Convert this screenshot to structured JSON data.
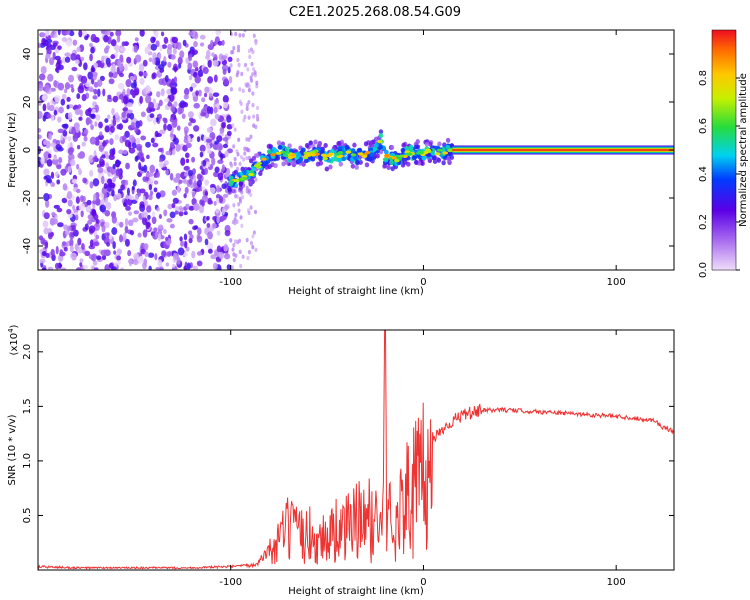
{
  "title": "C2E1.2025.268.08.54.G09",
  "chart_data": [
    {
      "type": "heatmap",
      "panel": "spectrogram",
      "xlabel": "Height of straight line (km)",
      "ylabel": "Frequency (Hz)",
      "xlim": [
        -200,
        130
      ],
      "ylim": [
        -50,
        50
      ],
      "xticks": [
        -100,
        0,
        100
      ],
      "yticks": [
        -40,
        -20,
        0,
        20,
        40
      ],
      "ridge": {
        "description": "frequency ridge (Hz) vs height (km)",
        "x": [
          -101,
          -95,
          -90,
          -85,
          -80,
          -75,
          -70,
          -65,
          -60,
          -55,
          -50,
          -45,
          -40,
          -35,
          -30,
          -25,
          -22,
          -20,
          -15,
          -10,
          -5,
          0,
          5,
          10,
          15,
          130
        ],
        "y": [
          -13,
          -12,
          -10,
          -6,
          -3,
          -1,
          -2,
          -3,
          -2,
          -1,
          -3,
          -2,
          -1,
          -3,
          -2,
          -1,
          4,
          -3,
          -4,
          -2,
          -1,
          -1,
          -1,
          -1,
          0,
          0
        ]
      },
      "colorbar": {
        "label": "Normalized spectral amplitude",
        "range": [
          0,
          1
        ],
        "ticks": [
          0.0,
          0.2,
          0.4,
          0.6,
          0.8
        ],
        "tick_labels": [
          "0.0",
          "0.2",
          "0.4",
          "0.6",
          "0.8"
        ]
      }
    },
    {
      "type": "line",
      "panel": "snr",
      "xlabel": "Height of straight line (km)",
      "ylabel": "SNR (10 * v/v)",
      "yscale_label": "(x10",
      "yscale_exp": "4",
      "yscale_close": ")",
      "xlim": [
        -200,
        130
      ],
      "ylim": [
        0,
        2.2
      ],
      "xticks": [
        -100,
        0,
        100
      ],
      "yticks": [
        0.5,
        1.0,
        1.5,
        2.0
      ],
      "ytick_labels": [
        "0.5",
        "1.0",
        "1.5",
        "2.0"
      ],
      "color": "#ee3333",
      "series": [
        {
          "name": "SNR",
          "x": [
            -200,
            -180,
            -160,
            -140,
            -120,
            -100,
            -90,
            -85,
            -80,
            -75,
            -70,
            -65,
            -60,
            -55,
            -50,
            -45,
            -40,
            -35,
            -30,
            -25,
            -21,
            -20,
            -19,
            -15,
            -10,
            -5,
            0,
            5,
            10,
            20,
            30,
            40,
            50,
            60,
            70,
            80,
            90,
            100,
            110,
            120,
            125,
            130
          ],
          "y": [
            0.03,
            0.02,
            0.02,
            0.02,
            0.02,
            0.03,
            0.04,
            0.08,
            0.2,
            0.35,
            0.5,
            0.4,
            0.45,
            0.35,
            0.42,
            0.48,
            0.5,
            0.6,
            0.6,
            0.6,
            0.6,
            2.2,
            0.6,
            0.65,
            0.8,
            1.0,
            1.1,
            1.2,
            1.3,
            1.42,
            1.46,
            1.47,
            1.46,
            1.45,
            1.44,
            1.43,
            1.42,
            1.41,
            1.39,
            1.37,
            1.3,
            1.27
          ]
        }
      ]
    }
  ]
}
